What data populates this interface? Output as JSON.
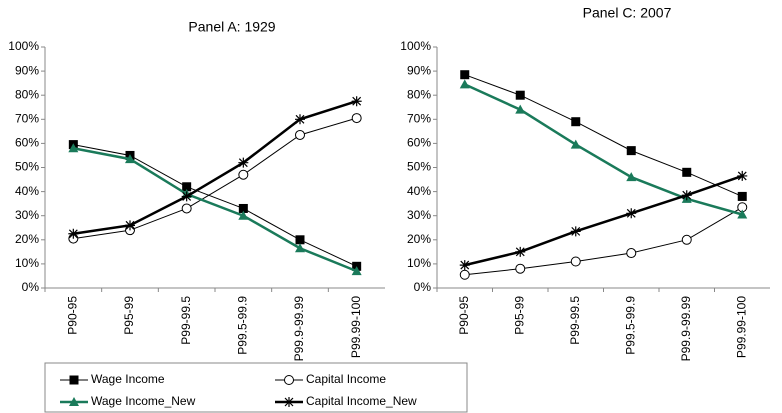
{
  "chart_data": [
    {
      "type": "line",
      "title": "Panel A: 1929",
      "categories": [
        "P90-95",
        "P95-99",
        "P99-99.5",
        "P99.5-99.9",
        "P99.9-99.99",
        "P99.99-100"
      ],
      "ylim": [
        0,
        100
      ],
      "yticks": [
        {
          "value": 0,
          "label": "0%"
        },
        {
          "value": 10,
          "label": "10%"
        },
        {
          "value": 20,
          "label": "20%"
        },
        {
          "value": 30,
          "label": "30%"
        },
        {
          "value": 40,
          "label": "40%"
        },
        {
          "value": 50,
          "label": "50%"
        },
        {
          "value": 60,
          "label": "60%"
        },
        {
          "value": 70,
          "label": "70%"
        },
        {
          "value": 80,
          "label": "80%"
        },
        {
          "value": 90,
          "label": "90%"
        },
        {
          "value": 100,
          "label": "100%"
        }
      ],
      "grid": false,
      "series": [
        {
          "name": "Wage Income",
          "color": "#000000",
          "marker": "square",
          "linewidth": 1,
          "values": [
            59.5,
            55,
            42,
            33,
            20,
            9
          ]
        },
        {
          "name": "Capital Income",
          "color": "#000000",
          "marker": "circle",
          "linewidth": 1,
          "values": [
            20.5,
            24,
            33,
            47,
            63.5,
            70.5
          ]
        },
        {
          "name": "Wage Income_New",
          "color": "#1a7a5a",
          "marker": "triangle",
          "linewidth": 2.5,
          "values": [
            58,
            53.5,
            39,
            30,
            16.5,
            7
          ]
        },
        {
          "name": "Capital Income_New",
          "color": "#000000",
          "marker": "star",
          "linewidth": 2.5,
          "values": [
            22.5,
            26,
            38,
            52,
            70,
            77.5
          ]
        }
      ]
    },
    {
      "type": "line",
      "title": "Panel C: 2007",
      "categories": [
        "P90-95",
        "P95-99",
        "P99-99.5",
        "P99.5-99.9",
        "P99.9-99.99",
        "P99.99-100"
      ],
      "ylim": [
        0,
        100
      ],
      "yticks": [
        {
          "value": 0,
          "label": "0%"
        },
        {
          "value": 10,
          "label": "10%"
        },
        {
          "value": 20,
          "label": "20%"
        },
        {
          "value": 30,
          "label": "30%"
        },
        {
          "value": 40,
          "label": "40%"
        },
        {
          "value": 50,
          "label": "50%"
        },
        {
          "value": 60,
          "label": "60%"
        },
        {
          "value": 70,
          "label": "70%"
        },
        {
          "value": 80,
          "label": "80%"
        },
        {
          "value": 90,
          "label": "90%"
        },
        {
          "value": 100,
          "label": "100%"
        }
      ],
      "grid": false,
      "series": [
        {
          "name": "Wage Income",
          "color": "#000000",
          "marker": "square",
          "linewidth": 1,
          "values": [
            88.5,
            80,
            69,
            57,
            48,
            38
          ]
        },
        {
          "name": "Capital Income",
          "color": "#000000",
          "marker": "circle",
          "linewidth": 1,
          "values": [
            5.5,
            8,
            11,
            14.5,
            20,
            33.5
          ]
        },
        {
          "name": "Wage Income_New",
          "color": "#1a7a5a",
          "marker": "triangle",
          "linewidth": 2.5,
          "values": [
            84.5,
            74,
            59.5,
            46,
            37,
            30.5
          ]
        },
        {
          "name": "Capital Income_New",
          "color": "#000000",
          "marker": "star",
          "linewidth": 2.5,
          "values": [
            9.5,
            15,
            23.5,
            31,
            38.5,
            46.5
          ]
        }
      ]
    }
  ]
}
